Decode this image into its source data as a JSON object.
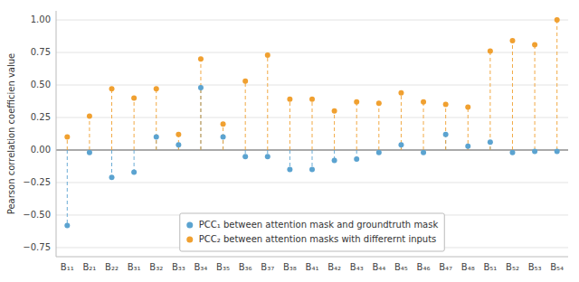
{
  "chart_data": {
    "type": "lollipop",
    "y_label": "Pearson correlation coefficien value",
    "categories": [
      "B₁₁",
      "B₂₁",
      "B₂₂",
      "B₃₁",
      "B₃₂",
      "B₃₃",
      "B₃₄",
      "B₃₅",
      "B₃₆",
      "B₃₇",
      "B₃₈",
      "B₄₁",
      "B₄₂",
      "B₄₃",
      "B₄₄",
      "B₄₅",
      "B₄₆",
      "B₄₇",
      "B₄₈",
      "B₅₁",
      "B₅₂",
      "B₅₃",
      "B₅₄"
    ],
    "series": [
      {
        "name": "PCC₁ between attention mask and groundtruth mask",
        "color": "#5BA3D0",
        "marker": "circle",
        "line_style": "dashed",
        "values": [
          -0.58,
          -0.02,
          -0.21,
          -0.17,
          0.1,
          0.04,
          0.48,
          0.1,
          -0.05,
          -0.05,
          -0.15,
          -0.15,
          -0.08,
          -0.07,
          -0.02,
          0.04,
          -0.02,
          0.12,
          0.03,
          0.06,
          -0.02,
          -0.01,
          -0.01
        ]
      },
      {
        "name": "PCC₂ between attention masks with differernt inputs",
        "color": "#F0A030",
        "marker": "circle",
        "line_style": "dashed",
        "values": [
          0.1,
          0.26,
          0.47,
          0.4,
          0.47,
          0.12,
          0.7,
          0.2,
          0.53,
          0.73,
          0.39,
          0.39,
          0.3,
          0.37,
          0.36,
          0.44,
          0.37,
          0.35,
          0.33,
          0.76,
          0.84,
          0.81,
          1.0
        ]
      }
    ],
    "ylim": [
      -0.82,
      1.07
    ],
    "yticks": [
      {
        "value": -0.75,
        "label": "−0.75"
      },
      {
        "value": -0.5,
        "label": "−0.50"
      },
      {
        "value": -0.25,
        "label": "−0.25"
      },
      {
        "value": 0,
        "label": "0.00"
      },
      {
        "value": 0.25,
        "label": "0.25"
      },
      {
        "value": 0.5,
        "label": "0.50"
      },
      {
        "value": 0.75,
        "label": "0.75"
      },
      {
        "value": 1,
        "label": "1.00"
      }
    ],
    "grid": true,
    "legend": "lower center"
  }
}
